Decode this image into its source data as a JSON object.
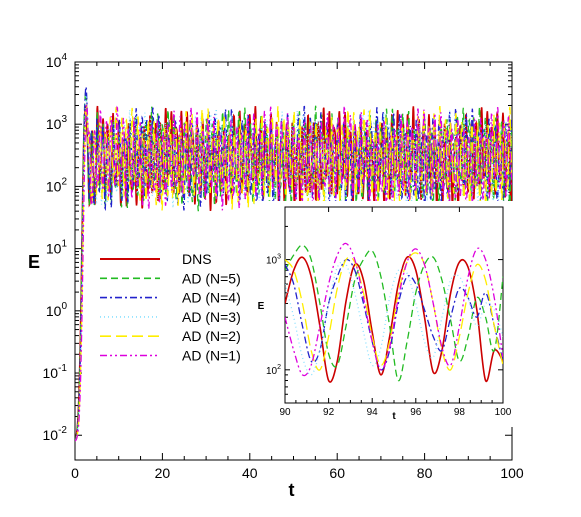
{
  "chart_data": [
    {
      "type": "line",
      "title": "",
      "xlabel": "t",
      "ylabel": "E",
      "xlim": [
        0,
        100
      ],
      "ylim": [
        0.004,
        10000
      ],
      "yscale": "log",
      "xticks": [
        "0",
        "20",
        "40",
        "60",
        "80",
        "100"
      ],
      "yticks": [
        {
          "base": "10",
          "exp": "-2",
          "value": 0.01
        },
        {
          "base": "10",
          "exp": "-1",
          "value": 0.1
        },
        {
          "base": "10",
          "exp": "0",
          "value": 1
        },
        {
          "base": "10",
          "exp": "1",
          "value": 10
        },
        {
          "base": "10",
          "exp": "2",
          "value": 100
        },
        {
          "base": "10",
          "exp": "3",
          "value": 1000
        },
        {
          "base": "10",
          "exp": "4",
          "value": 10000
        }
      ],
      "legend_position": "center-left",
      "grid": false,
      "series": [
        {
          "name": "DNS",
          "color": "#cc0000",
          "dash": "solid",
          "amp": 0.55,
          "freq": 0.83,
          "phase": 0.0
        },
        {
          "name": "AD (N=5)",
          "color": "#22bb22",
          "dash": "dash",
          "amp": 0.55,
          "freq": 0.8,
          "phase": 1.2
        },
        {
          "name": "AD (N=4)",
          "color": "#2222cc",
          "dash": "dashdot",
          "amp": 0.55,
          "freq": 0.78,
          "phase": 2.1
        },
        {
          "name": "AD (N=3)",
          "color": "#88e0ff",
          "dash": "dot",
          "amp": 0.5,
          "freq": 0.86,
          "phase": 3.0
        },
        {
          "name": "AD (N=2)",
          "color": "#ffee00",
          "dash": "longdash",
          "amp": 0.55,
          "freq": 0.81,
          "phase": 4.0
        },
        {
          "name": "AD (N=1)",
          "color": "#dd00dd",
          "dash": "dashdotdot",
          "amp": 0.55,
          "freq": 0.77,
          "phase": 5.0
        }
      ]
    },
    {
      "type": "line",
      "title": "",
      "xlabel": "t",
      "ylabel": "E",
      "xlim": [
        90,
        100
      ],
      "ylim": [
        50,
        3000
      ],
      "yscale": "log",
      "xticks": [
        "90",
        "92",
        "94",
        "96",
        "98",
        "100"
      ],
      "yticks": [
        {
          "base": "10",
          "exp": "2",
          "value": 100
        },
        {
          "base": "10",
          "exp": "3",
          "value": 1000
        }
      ],
      "series": [
        {
          "name": "DNS",
          "x": [
            90,
            90.4,
            90.8,
            91.2,
            91.6,
            92.0,
            92.4,
            92.8,
            93.2,
            93.6,
            94.0,
            94.4,
            94.8,
            95.2,
            95.6,
            96.0,
            96.4,
            96.8,
            97.2,
            97.6,
            98.0,
            98.4,
            98.8,
            99.2,
            99.6,
            100
          ],
          "y": [
            400,
            800,
            1050,
            700,
            250,
            80,
            120,
            420,
            900,
            650,
            220,
            90,
            200,
            600,
            1050,
            800,
            300,
            95,
            150,
            500,
            950,
            850,
            350,
            80,
            150,
            120
          ]
        },
        {
          "name": "AD (N=5)",
          "x": [
            90,
            90.4,
            90.8,
            91.2,
            91.6,
            92.0,
            92.4,
            92.8,
            93.2,
            93.6,
            94.0,
            94.4,
            94.8,
            95.2,
            95.6,
            96.0,
            96.4,
            96.8,
            97.2,
            97.6,
            98.0,
            98.4,
            98.8,
            99.2,
            99.6,
            100
          ],
          "y": [
            800,
            1100,
            1350,
            1000,
            400,
            140,
            110,
            250,
            650,
            1000,
            1200,
            700,
            250,
            80,
            180,
            500,
            900,
            1050,
            650,
            280,
            120,
            200,
            450,
            300,
            150,
            700
          ]
        },
        {
          "name": "AD (N=4)",
          "x": [
            90,
            90.4,
            90.8,
            91.2,
            91.6,
            92.0,
            92.4,
            92.8,
            93.2,
            93.6,
            94.0,
            94.4,
            94.8,
            95.2,
            95.6,
            96.0,
            96.4,
            96.8,
            97.2,
            97.6,
            98.0,
            98.4,
            98.8,
            99.2,
            99.6,
            100
          ],
          "y": [
            900,
            600,
            250,
            120,
            150,
            400,
            700,
            1000,
            800,
            400,
            180,
            100,
            150,
            400,
            700,
            600,
            350,
            200,
            150,
            300,
            550,
            450,
            300,
            500,
            250,
            120
          ]
        },
        {
          "name": "AD (N=3)",
          "x": [
            90,
            90.4,
            90.8,
            91.2,
            91.6,
            92.0,
            92.4,
            92.8,
            93.2,
            93.6,
            94.0,
            94.4,
            94.8,
            95.2,
            95.6,
            96.0,
            96.4,
            96.8,
            97.2,
            97.6,
            98.0,
            98.4,
            98.8,
            99.2,
            99.6,
            100
          ],
          "y": [
            600,
            300,
            130,
            90,
            150,
            400,
            850,
            900,
            500,
            220,
            110,
            160,
            450,
            800,
            750,
            400,
            180,
            130,
            300,
            650,
            700,
            450,
            250,
            400,
            350,
            200
          ]
        },
        {
          "name": "AD (N=2)",
          "x": [
            90,
            90.4,
            90.8,
            91.2,
            91.6,
            92.0,
            92.4,
            92.8,
            93.2,
            93.6,
            94.0,
            94.4,
            94.8,
            95.2,
            95.6,
            96.0,
            96.4,
            96.8,
            97.2,
            97.6,
            98.0,
            98.4,
            98.8,
            99.2,
            99.6,
            100
          ],
          "y": [
            1000,
            800,
            400,
            150,
            100,
            200,
            550,
            1000,
            950,
            500,
            200,
            110,
            180,
            500,
            950,
            1150,
            900,
            400,
            150,
            100,
            200,
            500,
            900,
            650,
            250,
            110
          ]
        },
        {
          "name": "AD (N=1)",
          "x": [
            90,
            90.4,
            90.8,
            91.2,
            91.6,
            92.0,
            92.4,
            92.8,
            93.2,
            93.6,
            94.0,
            94.4,
            94.8,
            95.2,
            95.6,
            96.0,
            96.4,
            96.8,
            97.2,
            97.6,
            98.0,
            98.4,
            98.8,
            99.2,
            99.6,
            100
          ],
          "y": [
            300,
            150,
            90,
            110,
            250,
            600,
            1100,
            1400,
            1000,
            450,
            180,
            100,
            160,
            450,
            950,
            1250,
            900,
            400,
            160,
            110,
            250,
            700,
            1250,
            1000,
            450,
            130
          ]
        }
      ]
    }
  ]
}
